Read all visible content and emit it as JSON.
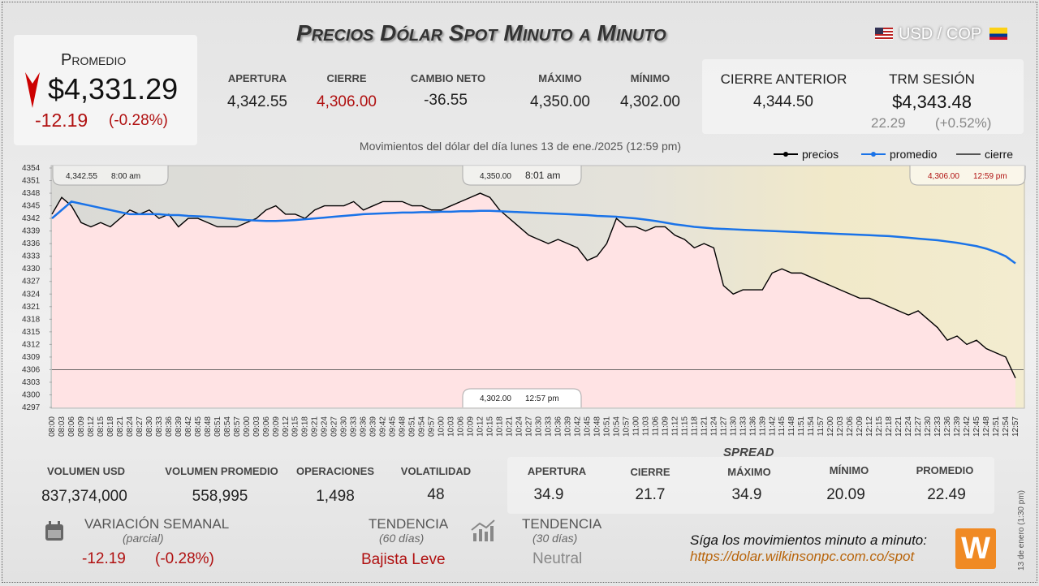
{
  "header": {
    "title": "Precios Dólar Spot Minuto a Minuto",
    "pair": "USD / COP"
  },
  "promedio": {
    "label": "Promedio",
    "value": "$4,331.29",
    "change": "-12.19",
    "change_pct": "(-0.28%)"
  },
  "stats": [
    {
      "label": "APERTURA",
      "value": "4,342.55"
    },
    {
      "label": "CIERRE",
      "value": "4,306.00"
    },
    {
      "label": "CAMBIO NETO",
      "value": "-36.55"
    },
    {
      "label": "MÁXIMO",
      "value": "4,350.00"
    },
    {
      "label": "MÍNIMO",
      "value": "4,302.00"
    }
  ],
  "previous": {
    "label": "CIERRE ANTERIOR",
    "value": "4,344.50"
  },
  "trm": {
    "label": "TRM SESIÓN",
    "value": "$4,343.48",
    "change": "22.29",
    "change_pct": "(+0.52%)"
  },
  "chart_data": {
    "type": "line",
    "title": "Movimientos del dólar del día lunes 13 de ene./2025 (12:59 pm)",
    "x": [
      "08:00",
      "08:03",
      "08:06",
      "08:09",
      "08:12",
      "08:15",
      "08:18",
      "08:21",
      "08:24",
      "08:27",
      "08:30",
      "08:33",
      "08:36",
      "08:39",
      "08:42",
      "08:45",
      "08:48",
      "08:51",
      "08:54",
      "08:57",
      "09:00",
      "09:03",
      "09:06",
      "09:09",
      "09:12",
      "09:15",
      "09:18",
      "09:21",
      "09:24",
      "09:27",
      "09:30",
      "09:33",
      "09:36",
      "09:39",
      "09:42",
      "09:45",
      "09:48",
      "09:51",
      "09:54",
      "09:57",
      "10:00",
      "10:03",
      "10:06",
      "10:09",
      "10:12",
      "10:15",
      "10:18",
      "10:21",
      "10:24",
      "10:27",
      "10:30",
      "10:33",
      "10:36",
      "10:39",
      "10:42",
      "10:45",
      "10:48",
      "10:51",
      "10:54",
      "10:57",
      "11:00",
      "11:03",
      "11:06",
      "11:09",
      "11:12",
      "11:15",
      "11:18",
      "11:21",
      "11:24",
      "11:27",
      "11:30",
      "11:33",
      "11:36",
      "11:39",
      "11:42",
      "11:45",
      "11:48",
      "11:51",
      "11:54",
      "11:57",
      "12:00",
      "12:03",
      "12:06",
      "12:09",
      "12:12",
      "12:15",
      "12:18",
      "12:21",
      "12:24",
      "12:27",
      "12:30",
      "12:33",
      "12:36",
      "12:39",
      "12:42",
      "12:45",
      "12:48",
      "12:51",
      "12:54",
      "12:57"
    ],
    "series": [
      {
        "name": "precios",
        "color": "#000000",
        "values": [
          4343,
          4347,
          4345,
          4341,
          4340,
          4341,
          4340,
          4342,
          4344,
          4343,
          4344,
          4342,
          4343,
          4340,
          4342,
          4342,
          4341,
          4340,
          4340,
          4340,
          4341,
          4342,
          4344,
          4345,
          4343,
          4343,
          4342,
          4344,
          4345,
          4345,
          4345,
          4346,
          4344,
          4345,
          4346,
          4346,
          4346,
          4345,
          4345,
          4344,
          4344,
          4345,
          4346,
          4347,
          4348,
          4347,
          4344,
          4342,
          4340,
          4338,
          4337,
          4336,
          4337,
          4336,
          4335,
          4332,
          4333,
          4336,
          4342,
          4340,
          4340,
          4339,
          4340,
          4340,
          4338,
          4337,
          4335,
          4336,
          4335,
          4326,
          4324,
          4325,
          4325,
          4325,
          4329,
          4330,
          4329,
          4329,
          4328,
          4327,
          4326,
          4325,
          4324,
          4323,
          4323,
          4322,
          4321,
          4320,
          4319,
          4320,
          4318,
          4316,
          4313,
          4314,
          4312,
          4313,
          4311,
          4310,
          4309,
          4304
        ]
      },
      {
        "name": "promedio",
        "color": "#1a73e8",
        "values": [
          4342,
          4344,
          4346,
          4345.5,
          4345,
          4344.5,
          4344,
          4343.5,
          4343,
          4343,
          4343,
          4343,
          4342.8,
          4342.8,
          4342.6,
          4342.5,
          4342.4,
          4342.2,
          4342,
          4341.8,
          4341.6,
          4341.5,
          4341.4,
          4341.4,
          4341.5,
          4341.6,
          4341.8,
          4342,
          4342.2,
          4342.4,
          4342.6,
          4342.8,
          4343,
          4343.1,
          4343.2,
          4343.3,
          4343.4,
          4343.4,
          4343.5,
          4343.5,
          4343.6,
          4343.6,
          4343.7,
          4343.7,
          4343.8,
          4343.8,
          4343.7,
          4343.6,
          4343.5,
          4343.4,
          4343.3,
          4343.2,
          4343.1,
          4343,
          4342.9,
          4342.8,
          4342.6,
          4342.5,
          4342.4,
          4342.2,
          4342,
          4341.7,
          4341.4,
          4341,
          4340.6,
          4340.3,
          4340,
          4339.8,
          4339.6,
          4339.5,
          4339.4,
          4339.3,
          4339.2,
          4339.1,
          4339,
          4338.9,
          4338.8,
          4338.7,
          4338.6,
          4338.5,
          4338.4,
          4338.3,
          4338.2,
          4338.1,
          4338,
          4337.9,
          4337.8,
          4337.6,
          4337.4,
          4337.2,
          4337,
          4336.8,
          4336.5,
          4336.2,
          4335.8,
          4335.4,
          4334.8,
          4334,
          4333,
          4331.3
        ]
      }
    ],
    "close_line": {
      "name": "cierre",
      "value": 4306,
      "color": "#555555"
    },
    "ylim": [
      4297,
      4354
    ],
    "yticks": [
      4297,
      4300,
      4303,
      4306,
      4309,
      4312,
      4315,
      4318,
      4321,
      4324,
      4327,
      4330,
      4333,
      4336,
      4339,
      4342,
      4345,
      4348,
      4351,
      4354
    ],
    "annotations": [
      {
        "price": "4,342.55",
        "time": "8:00 am"
      },
      {
        "price": "4,350.00",
        "time": "8:01 am"
      },
      {
        "price": "4,306.00",
        "time": "12:59 pm"
      },
      {
        "price": "4,302.00",
        "time": "12:57 pm"
      }
    ]
  },
  "bottom": [
    {
      "label": "VOLUMEN USD",
      "value": "837,374,000"
    },
    {
      "label": "VOLUMEN PROMEDIO",
      "value": "558,995"
    },
    {
      "label": "OPERACIONES",
      "value": "1,498"
    },
    {
      "label": "VOLATILIDAD",
      "value": "48"
    }
  ],
  "spread": {
    "title": "SPREAD",
    "items": [
      {
        "label": "APERTURA",
        "value": "34.9"
      },
      {
        "label": "CIERRE",
        "value": "21.7"
      },
      {
        "label": "MÁXIMO",
        "value": "34.9"
      },
      {
        "label": "MÍNIMO",
        "value": "20.09"
      },
      {
        "label": "PROMEDIO",
        "value": "22.49"
      }
    ]
  },
  "weekly": {
    "label": "VARIACIÓN SEMANAL",
    "note": "(parcial)",
    "change": "-12.19",
    "change_pct": "(-0.28%)"
  },
  "trend60": {
    "label": "TENDENCIA",
    "note": "(60 días)",
    "value": "Bajista Leve"
  },
  "trend30": {
    "label": "TENDENCIA",
    "note": "(30 días)",
    "value": "Neutral"
  },
  "footer": {
    "text": "Síga los movimientos minuto a minuto:",
    "url": "https://dolar.wilkinsonpc.com.co/spot",
    "stamp": "13 de enero (1:30 pm)",
    "logo": "W"
  }
}
